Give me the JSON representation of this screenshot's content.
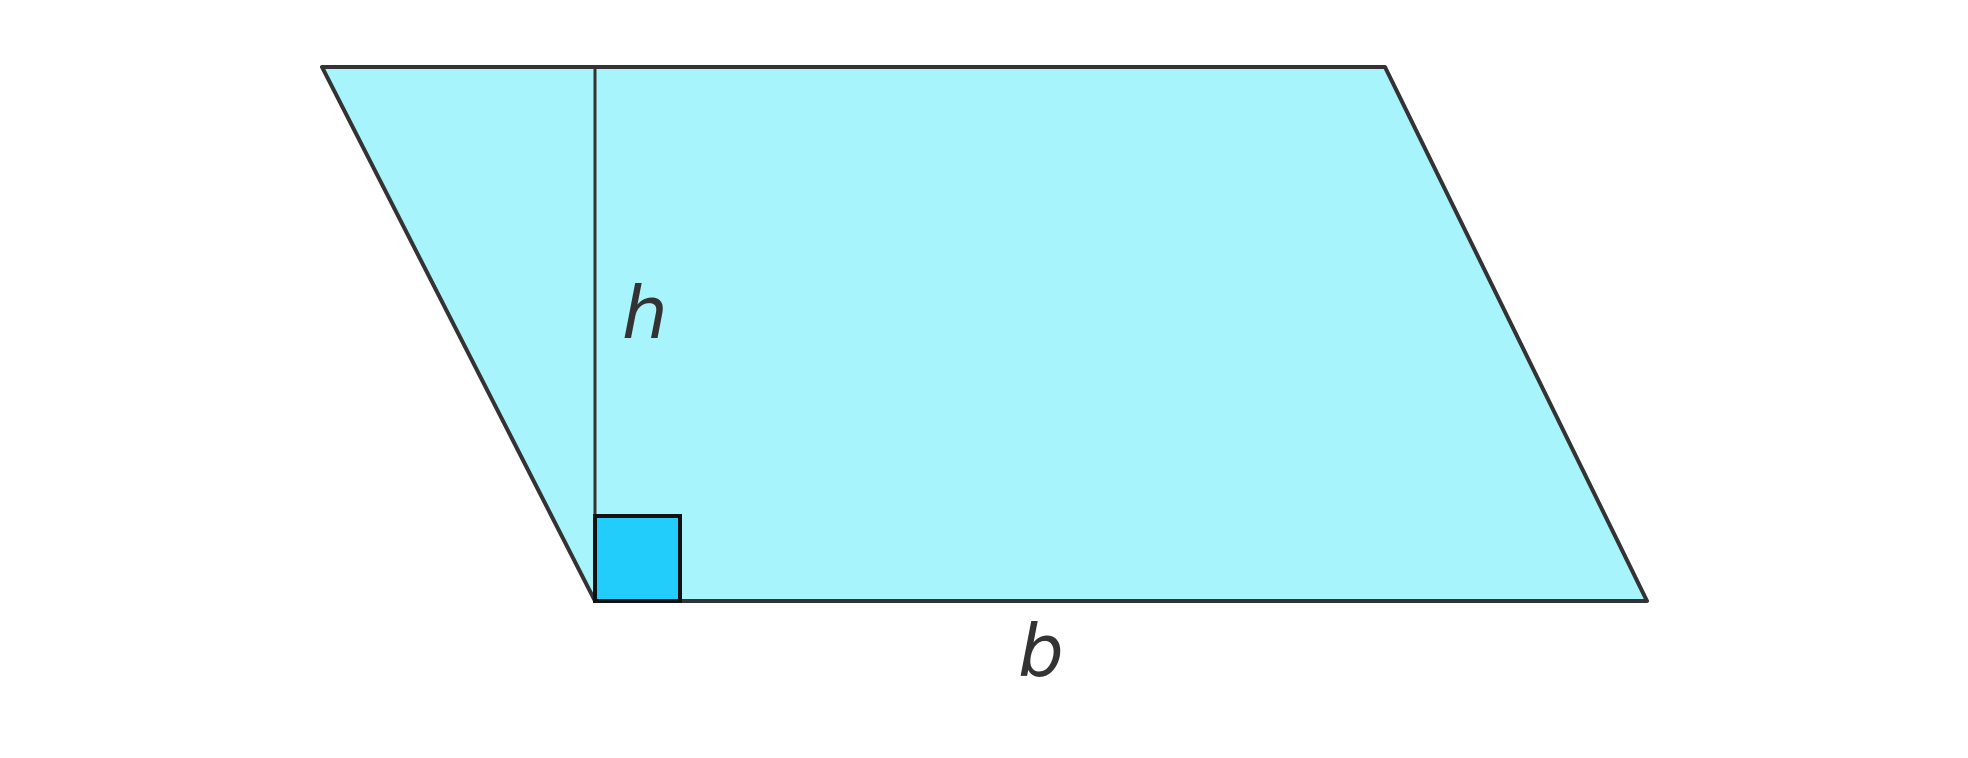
{
  "labels": {
    "height": "h",
    "base": "b"
  },
  "colors": {
    "fill": "#a8f4fc",
    "right_angle_fill": "#22cdfc",
    "stroke": "#333333",
    "marker_stroke": "#111111"
  },
  "shapes": {
    "parallelogram": "parallelogram",
    "height_line": "height-segment",
    "right_angle": "right-angle-marker"
  }
}
